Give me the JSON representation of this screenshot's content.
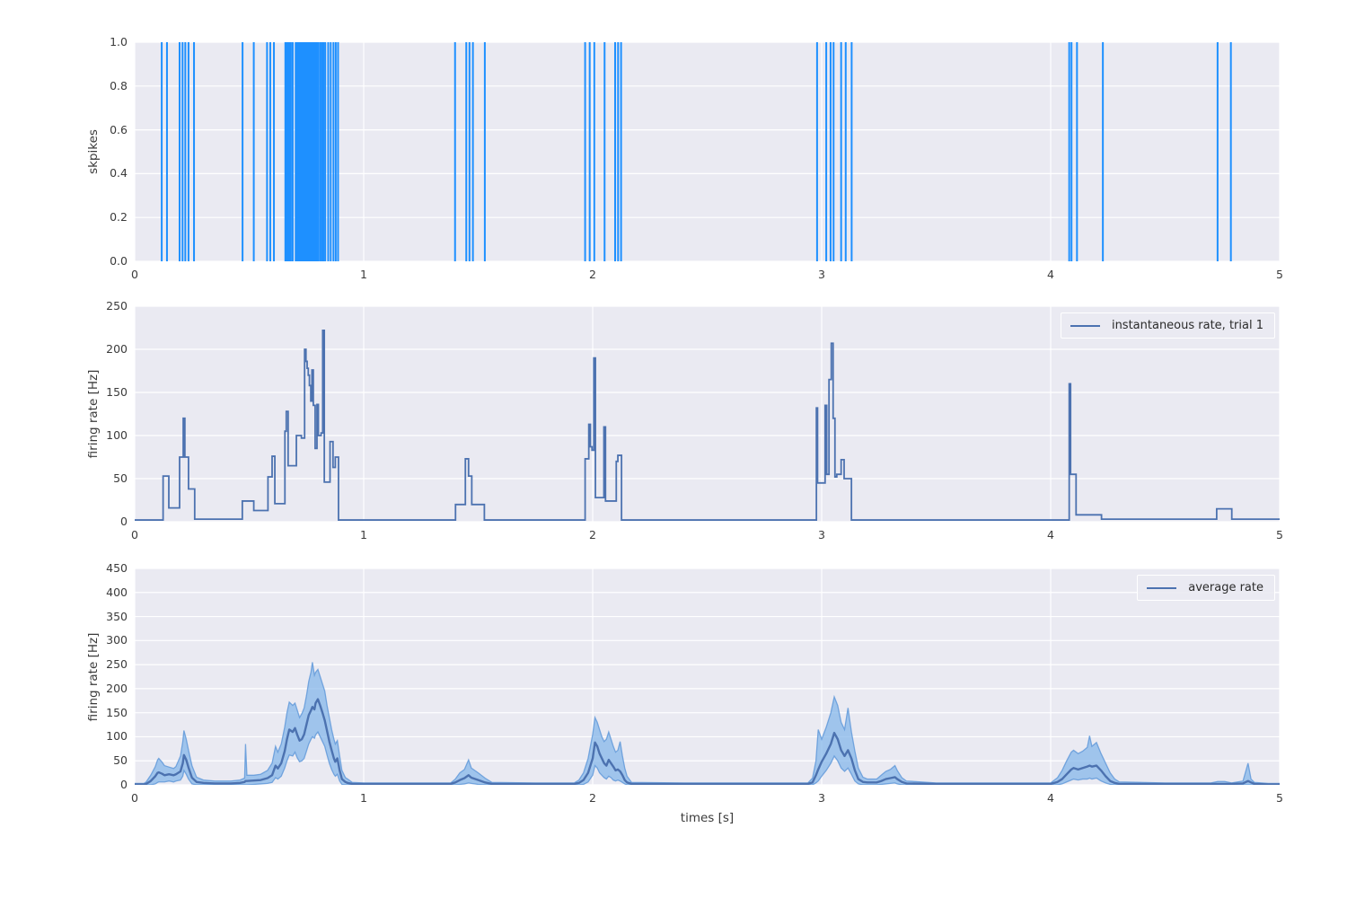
{
  "figure": {
    "background": "#ffffff",
    "axes_background": "#eaeaf2",
    "grid_color": "#ffffff",
    "tick_color": "#3b3b3b",
    "xlabel": "times [s]"
  },
  "chart_data": [
    {
      "type": "scatter",
      "subtype": "spike-raster",
      "ylabel": "skpikes",
      "xlim": [
        0,
        5
      ],
      "ylim": [
        0,
        1
      ],
      "xticks": [
        "0",
        "1",
        "2",
        "3",
        "4",
        "5"
      ],
      "yticks": [
        "0.0",
        "0.2",
        "0.4",
        "0.6",
        "0.8",
        "1.0"
      ],
      "grid": true,
      "line_color": "#1e90ff",
      "spike_times": [
        0.118,
        0.141,
        0.196,
        0.209,
        0.221,
        0.235,
        0.259,
        0.471,
        0.52,
        0.578,
        0.592,
        0.608,
        0.658,
        0.664,
        0.67,
        0.676,
        0.682,
        0.69,
        0.703,
        0.709,
        0.715,
        0.721,
        0.727,
        0.733,
        0.739,
        0.744,
        0.749,
        0.754,
        0.759,
        0.764,
        0.769,
        0.774,
        0.779,
        0.784,
        0.79,
        0.796,
        0.803,
        0.811,
        0.818,
        0.825,
        0.832,
        0.845,
        0.856,
        0.868,
        0.878,
        0.888,
        1.399,
        1.448,
        1.462,
        1.477,
        1.529,
        1.967,
        1.987,
        2.007,
        2.052,
        2.098,
        2.111,
        2.124,
        2.98,
        3.02,
        3.039,
        3.052,
        3.085,
        3.105,
        3.131,
        4.081,
        4.091,
        4.115,
        4.228,
        4.729,
        4.787
      ]
    },
    {
      "type": "line",
      "subtype": "step",
      "ylabel": "firing rate [Hz]",
      "xlim": [
        0,
        5
      ],
      "ylim": [
        0,
        250
      ],
      "xticks": [
        "0",
        "1",
        "2",
        "3",
        "4",
        "5"
      ],
      "yticks": [
        "0",
        "50",
        "100",
        "150",
        "200",
        "250"
      ],
      "grid": true,
      "legend": "instantaneous rate, trial 1",
      "legend_position": "upper right",
      "line_color": "#4c72b0",
      "step_points": [
        [
          0,
          2
        ],
        [
          0.124,
          53
        ],
        [
          0.149,
          16
        ],
        [
          0.196,
          75
        ],
        [
          0.212,
          120
        ],
        [
          0.219,
          75
        ],
        [
          0.235,
          38
        ],
        [
          0.262,
          3
        ],
        [
          0.47,
          24
        ],
        [
          0.52,
          13
        ],
        [
          0.582,
          52
        ],
        [
          0.6,
          76
        ],
        [
          0.612,
          21
        ],
        [
          0.656,
          105
        ],
        [
          0.662,
          128
        ],
        [
          0.67,
          65
        ],
        [
          0.706,
          100
        ],
        [
          0.728,
          97
        ],
        [
          0.742,
          200
        ],
        [
          0.748,
          186
        ],
        [
          0.753,
          178
        ],
        [
          0.758,
          170
        ],
        [
          0.763,
          158
        ],
        [
          0.769,
          140
        ],
        [
          0.774,
          176
        ],
        [
          0.78,
          135
        ],
        [
          0.788,
          85
        ],
        [
          0.796,
          136
        ],
        [
          0.802,
          100
        ],
        [
          0.814,
          103
        ],
        [
          0.821,
          222
        ],
        [
          0.828,
          46
        ],
        [
          0.853,
          93
        ],
        [
          0.866,
          63
        ],
        [
          0.876,
          75
        ],
        [
          0.89,
          2
        ],
        [
          1.401,
          20
        ],
        [
          1.444,
          73
        ],
        [
          1.458,
          53
        ],
        [
          1.472,
          20
        ],
        [
          1.527,
          2
        ],
        [
          1.967,
          73
        ],
        [
          1.983,
          113
        ],
        [
          1.99,
          87
        ],
        [
          1.997,
          83
        ],
        [
          2.005,
          190
        ],
        [
          2.012,
          28
        ],
        [
          2.049,
          110
        ],
        [
          2.056,
          24
        ],
        [
          2.103,
          70
        ],
        [
          2.11,
          77
        ],
        [
          2.126,
          2
        ],
        [
          2.977,
          132
        ],
        [
          2.982,
          45
        ],
        [
          3.015,
          135
        ],
        [
          3.022,
          55
        ],
        [
          3.032,
          165
        ],
        [
          3.042,
          207
        ],
        [
          3.05,
          120
        ],
        [
          3.058,
          52
        ],
        [
          3.066,
          55
        ],
        [
          3.085,
          72
        ],
        [
          3.098,
          50
        ],
        [
          3.13,
          2
        ],
        [
          4.081,
          160
        ],
        [
          4.087,
          55
        ],
        [
          4.111,
          8
        ],
        [
          4.222,
          3
        ],
        [
          4.725,
          15
        ],
        [
          4.791,
          3
        ],
        [
          5.0,
          3
        ]
      ]
    },
    {
      "type": "area",
      "subtype": "mean-with-band",
      "ylabel": "firing rate [Hz]",
      "xlabel": "times [s]",
      "xlim": [
        0,
        5
      ],
      "ylim": [
        0,
        450
      ],
      "xticks": [
        "0",
        "1",
        "2",
        "3",
        "4",
        "5"
      ],
      "yticks": [
        "0",
        "50",
        "100",
        "150",
        "200",
        "250",
        "300",
        "350",
        "400",
        "450"
      ],
      "grid": true,
      "legend": "average rate",
      "legend_position": "upper right",
      "line_color": "#4c72b0",
      "band_color": "#7fb3e9",
      "band_edge_color": "#5d96d8",
      "series_points_format": [
        "t",
        "mean",
        "lo",
        "hi"
      ],
      "series_points": [
        [
          0,
          1,
          0,
          3
        ],
        [
          0.04,
          1,
          0,
          3
        ],
        [
          0.05,
          2,
          0,
          6
        ],
        [
          0.07,
          8,
          0,
          20
        ],
        [
          0.09,
          18,
          2,
          38
        ],
        [
          0.1,
          25,
          5,
          52
        ],
        [
          0.105,
          26,
          6,
          55
        ],
        [
          0.12,
          23,
          6,
          47
        ],
        [
          0.13,
          20,
          6,
          40
        ],
        [
          0.15,
          22,
          8,
          37
        ],
        [
          0.17,
          20,
          6,
          34
        ],
        [
          0.18,
          22,
          8,
          38
        ],
        [
          0.2,
          28,
          10,
          60
        ],
        [
          0.21,
          45,
          18,
          90
        ],
        [
          0.215,
          62,
          30,
          113
        ],
        [
          0.225,
          52,
          22,
          95
        ],
        [
          0.235,
          36,
          12,
          72
        ],
        [
          0.25,
          15,
          2,
          40
        ],
        [
          0.27,
          6,
          0,
          16
        ],
        [
          0.3,
          4,
          0,
          10
        ],
        [
          0.35,
          3,
          0,
          8
        ],
        [
          0.42,
          3,
          0,
          8
        ],
        [
          0.46,
          4,
          0,
          10
        ],
        [
          0.48,
          6,
          0,
          14
        ],
        [
          0.484,
          8,
          0,
          85
        ],
        [
          0.49,
          8,
          0,
          20
        ],
        [
          0.52,
          9,
          1,
          20
        ],
        [
          0.55,
          10,
          2,
          22
        ],
        [
          0.58,
          14,
          3,
          30
        ],
        [
          0.6,
          20,
          5,
          45
        ],
        [
          0.615,
          40,
          15,
          80
        ],
        [
          0.625,
          34,
          12,
          68
        ],
        [
          0.64,
          45,
          18,
          85
        ],
        [
          0.655,
          70,
          35,
          120
        ],
        [
          0.665,
          95,
          50,
          150
        ],
        [
          0.675,
          115,
          62,
          172
        ],
        [
          0.69,
          110,
          60,
          165
        ],
        [
          0.7,
          118,
          68,
          170
        ],
        [
          0.71,
          104,
          56,
          155
        ],
        [
          0.72,
          92,
          48,
          140
        ],
        [
          0.73,
          95,
          50,
          148
        ],
        [
          0.74,
          105,
          55,
          160
        ],
        [
          0.75,
          125,
          70,
          185
        ],
        [
          0.76,
          145,
          85,
          215
        ],
        [
          0.77,
          155,
          95,
          235
        ],
        [
          0.776,
          162,
          100,
          255
        ],
        [
          0.785,
          157,
          97,
          228
        ],
        [
          0.79,
          170,
          104,
          234
        ],
        [
          0.8,
          178,
          110,
          240
        ],
        [
          0.81,
          165,
          100,
          225
        ],
        [
          0.82,
          150,
          90,
          210
        ],
        [
          0.83,
          134,
          80,
          195
        ],
        [
          0.84,
          112,
          62,
          165
        ],
        [
          0.85,
          90,
          45,
          140
        ],
        [
          0.86,
          72,
          32,
          115
        ],
        [
          0.87,
          55,
          22,
          95
        ],
        [
          0.876,
          48,
          18,
          85
        ],
        [
          0.885,
          55,
          22,
          92
        ],
        [
          0.895,
          30,
          8,
          60
        ],
        [
          0.905,
          12,
          1,
          30
        ],
        [
          0.92,
          6,
          0,
          15
        ],
        [
          0.93,
          4,
          0,
          12
        ],
        [
          0.95,
          2,
          0,
          5
        ],
        [
          1.0,
          2,
          0,
          4
        ],
        [
          1.2,
          2,
          0,
          4
        ],
        [
          1.38,
          2,
          0,
          4
        ],
        [
          1.4,
          5,
          0,
          12
        ],
        [
          1.42,
          10,
          1,
          25
        ],
        [
          1.44,
          14,
          2,
          32
        ],
        [
          1.458,
          20,
          4,
          52
        ],
        [
          1.47,
          15,
          3,
          35
        ],
        [
          1.5,
          10,
          1,
          25
        ],
        [
          1.53,
          5,
          0,
          14
        ],
        [
          1.56,
          2,
          0,
          5
        ],
        [
          1.75,
          2,
          0,
          4
        ],
        [
          1.92,
          2,
          0,
          4
        ],
        [
          1.94,
          4,
          0,
          10
        ],
        [
          1.96,
          10,
          1,
          25
        ],
        [
          1.98,
          25,
          6,
          55
        ],
        [
          2.0,
          55,
          20,
          105
        ],
        [
          2.01,
          88,
          40,
          140
        ],
        [
          2.02,
          80,
          35,
          130
        ],
        [
          2.03,
          65,
          25,
          115
        ],
        [
          2.04,
          55,
          20,
          100
        ],
        [
          2.05,
          45,
          15,
          90
        ],
        [
          2.06,
          40,
          12,
          95
        ],
        [
          2.07,
          52,
          18,
          110
        ],
        [
          2.08,
          45,
          15,
          95
        ],
        [
          2.09,
          38,
          10,
          80
        ],
        [
          2.1,
          30,
          8,
          68
        ],
        [
          2.11,
          32,
          10,
          72
        ],
        [
          2.12,
          28,
          8,
          90
        ],
        [
          2.13,
          20,
          5,
          60
        ],
        [
          2.14,
          10,
          2,
          35
        ],
        [
          2.15,
          5,
          0,
          18
        ],
        [
          2.17,
          2,
          0,
          5
        ],
        [
          2.4,
          2,
          0,
          4
        ],
        [
          2.7,
          2,
          0,
          4
        ],
        [
          2.94,
          2,
          0,
          4
        ],
        [
          2.96,
          5,
          0,
          14
        ],
        [
          2.975,
          20,
          4,
          50
        ],
        [
          2.985,
          32,
          8,
          115
        ],
        [
          3.0,
          48,
          18,
          95
        ],
        [
          3.02,
          65,
          30,
          120
        ],
        [
          3.04,
          85,
          45,
          150
        ],
        [
          3.055,
          108,
          60,
          183
        ],
        [
          3.07,
          95,
          50,
          165
        ],
        [
          3.085,
          72,
          35,
          130
        ],
        [
          3.1,
          60,
          28,
          115
        ],
        [
          3.115,
          72,
          35,
          160
        ],
        [
          3.13,
          55,
          22,
          110
        ],
        [
          3.145,
          30,
          8,
          70
        ],
        [
          3.16,
          12,
          2,
          35
        ],
        [
          3.18,
          6,
          0,
          16
        ],
        [
          3.2,
          5,
          0,
          12
        ],
        [
          3.24,
          5,
          0,
          12
        ],
        [
          3.26,
          8,
          1,
          20
        ],
        [
          3.28,
          12,
          2,
          28
        ],
        [
          3.3,
          14,
          3,
          32
        ],
        [
          3.32,
          16,
          4,
          40
        ],
        [
          3.33,
          12,
          2,
          30
        ],
        [
          3.35,
          6,
          0,
          15
        ],
        [
          3.37,
          3,
          0,
          8
        ],
        [
          3.5,
          2,
          0,
          4
        ],
        [
          3.8,
          2,
          0,
          4
        ],
        [
          4.0,
          2,
          0,
          4
        ],
        [
          4.03,
          6,
          0,
          15
        ],
        [
          4.05,
          12,
          2,
          30
        ],
        [
          4.07,
          22,
          6,
          50
        ],
        [
          4.09,
          32,
          10,
          68
        ],
        [
          4.1,
          35,
          12,
          72
        ],
        [
          4.12,
          32,
          10,
          65
        ],
        [
          4.14,
          35,
          12,
          70
        ],
        [
          4.16,
          38,
          12,
          78
        ],
        [
          4.17,
          40,
          14,
          102
        ],
        [
          4.18,
          38,
          12,
          80
        ],
        [
          4.2,
          40,
          14,
          88
        ],
        [
          4.22,
          30,
          8,
          65
        ],
        [
          4.24,
          18,
          4,
          45
        ],
        [
          4.26,
          8,
          1,
          25
        ],
        [
          4.28,
          4,
          0,
          12
        ],
        [
          4.3,
          2,
          0,
          6
        ],
        [
          4.5,
          2,
          0,
          4
        ],
        [
          4.7,
          2,
          0,
          4
        ],
        [
          4.73,
          2,
          0,
          7
        ],
        [
          4.76,
          2,
          0,
          7
        ],
        [
          4.79,
          2,
          0,
          4
        ],
        [
          4.84,
          3,
          0,
          8
        ],
        [
          4.862,
          8,
          0,
          45
        ],
        [
          4.875,
          5,
          0,
          12
        ],
        [
          4.89,
          2,
          0,
          5
        ],
        [
          4.95,
          1,
          0,
          3
        ],
        [
          5.0,
          1,
          0,
          3
        ]
      ]
    }
  ]
}
